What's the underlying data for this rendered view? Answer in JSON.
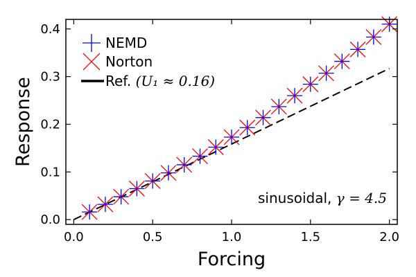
{
  "chart_data": {
    "type": "scatter",
    "title": "",
    "xlabel": "Forcing",
    "ylabel": "Response",
    "xlim": [
      -0.05,
      2.05
    ],
    "ylim": [
      -0.01,
      0.42
    ],
    "xticks": [
      0.0,
      0.5,
      1.0,
      1.5,
      2.0
    ],
    "xtick_labels": [
      "0.0",
      "0.5",
      "1.0",
      "1.5",
      "2.0"
    ],
    "yticks": [
      0.0,
      0.1,
      0.2,
      0.3,
      0.4
    ],
    "ytick_labels": [
      "0.0",
      "0.1",
      "0.2",
      "0.3",
      "0.4"
    ],
    "grid": false,
    "legend_position": "top-left",
    "series": [
      {
        "name": "NEMD",
        "marker": "plus",
        "color": "#0000ff",
        "x": [
          0.1,
          0.2,
          0.3,
          0.4,
          0.5,
          0.6,
          0.7,
          0.8,
          0.9,
          1.0,
          1.1,
          1.2,
          1.3,
          1.4,
          1.5,
          1.6,
          1.7,
          1.8,
          1.9,
          2.0
        ],
        "y": [
          0.016,
          0.032,
          0.048,
          0.065,
          0.081,
          0.098,
          0.115,
          0.133,
          0.152,
          0.173,
          0.193,
          0.214,
          0.237,
          0.26,
          0.284,
          0.307,
          0.332,
          0.357,
          0.383,
          0.41
        ]
      },
      {
        "name": "Norton",
        "marker": "x",
        "color": "#ff0000",
        "x": [
          0.1,
          0.2,
          0.3,
          0.4,
          0.5,
          0.6,
          0.7,
          0.8,
          0.9,
          1.0,
          1.1,
          1.2,
          1.3,
          1.4,
          1.5,
          1.6,
          1.7,
          1.8,
          1.9,
          2.0
        ],
        "y": [
          0.016,
          0.032,
          0.048,
          0.065,
          0.081,
          0.098,
          0.115,
          0.133,
          0.152,
          0.173,
          0.193,
          0.214,
          0.237,
          0.26,
          0.284,
          0.307,
          0.332,
          0.357,
          0.383,
          0.41
        ]
      },
      {
        "name": "Ref.",
        "legend_label": "Ref.",
        "legend_math": "(U₁ ≈ 0.16)",
        "type": "line",
        "style": "dashed",
        "color": "#000000",
        "x": [
          0.0,
          2.0
        ],
        "y": [
          0.0,
          0.317
        ]
      }
    ],
    "annotations": [
      {
        "text": "sinusoidal, ",
        "math": "γ = 4.5",
        "position": "bottom-right"
      }
    ]
  }
}
